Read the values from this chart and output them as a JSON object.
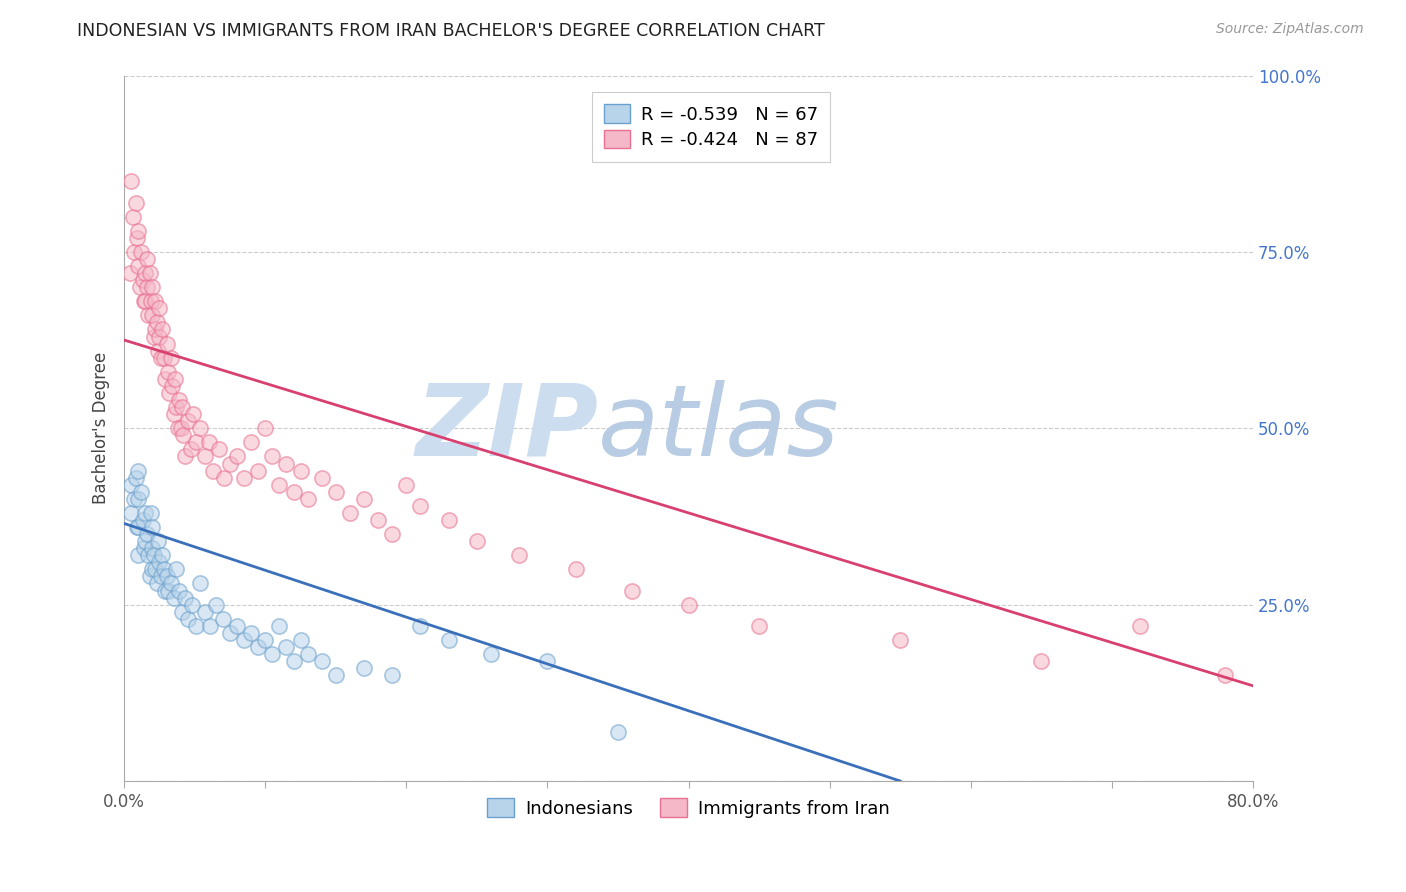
{
  "title": "INDONESIAN VS IMMIGRANTS FROM IRAN BACHELOR'S DEGREE CORRELATION CHART",
  "source": "Source: ZipAtlas.com",
  "ylabel": "Bachelor's Degree",
  "xmin": 0.0,
  "xmax": 0.8,
  "ymin": 0.0,
  "ymax": 1.0,
  "right_ytick_vals": [
    0.0,
    0.25,
    0.5,
    0.75,
    1.0
  ],
  "right_ytick_labels": [
    "",
    "25.0%",
    "50.0%",
    "75.0%",
    "100.0%"
  ],
  "grid_color": "#cccccc",
  "background_color": "#ffffff",
  "legend_label1": "R = -0.539   N = 67",
  "legend_label2": "R = -0.424   N = 87",
  "series1_name": "Indonesians",
  "series1_fill": "#b8d4ea",
  "series1_edge": "#6ca0cc",
  "series1_line_color": "#3a6fba",
  "series2_name": "Immigrants from Iran",
  "series2_fill": "#f5b8c8",
  "series2_edge": "#e87090",
  "series2_line_color": "#d84070",
  "watermark_zip": "ZIP",
  "watermark_atlas": "atlas",
  "watermark_color_zip": "#ccddf0",
  "watermark_color_atlas": "#b8cce4",
  "scatter_size": 120,
  "scatter_alpha": 0.55,
  "scatter_edgewidth": 1.2,
  "blue_scatter_x": [
    0.005,
    0.005,
    0.007,
    0.008,
    0.009,
    0.01,
    0.01,
    0.01,
    0.01,
    0.012,
    0.013,
    0.014,
    0.015,
    0.015,
    0.016,
    0.017,
    0.018,
    0.019,
    0.02,
    0.02,
    0.02,
    0.021,
    0.022,
    0.023,
    0.024,
    0.025,
    0.026,
    0.027,
    0.028,
    0.029,
    0.03,
    0.031,
    0.033,
    0.035,
    0.037,
    0.039,
    0.041,
    0.043,
    0.045,
    0.048,
    0.051,
    0.054,
    0.057,
    0.061,
    0.065,
    0.07,
    0.075,
    0.08,
    0.085,
    0.09,
    0.095,
    0.1,
    0.105,
    0.11,
    0.115,
    0.12,
    0.125,
    0.13,
    0.14,
    0.15,
    0.17,
    0.19,
    0.21,
    0.23,
    0.26,
    0.3,
    0.35
  ],
  "blue_scatter_y": [
    0.42,
    0.38,
    0.4,
    0.43,
    0.36,
    0.44,
    0.4,
    0.36,
    0.32,
    0.41,
    0.37,
    0.33,
    0.38,
    0.34,
    0.35,
    0.32,
    0.29,
    0.38,
    0.36,
    0.33,
    0.3,
    0.32,
    0.3,
    0.28,
    0.34,
    0.31,
    0.29,
    0.32,
    0.3,
    0.27,
    0.29,
    0.27,
    0.28,
    0.26,
    0.3,
    0.27,
    0.24,
    0.26,
    0.23,
    0.25,
    0.22,
    0.28,
    0.24,
    0.22,
    0.25,
    0.23,
    0.21,
    0.22,
    0.2,
    0.21,
    0.19,
    0.2,
    0.18,
    0.22,
    0.19,
    0.17,
    0.2,
    0.18,
    0.17,
    0.15,
    0.16,
    0.15,
    0.22,
    0.2,
    0.18,
    0.17,
    0.07
  ],
  "pink_scatter_x": [
    0.004,
    0.005,
    0.006,
    0.007,
    0.008,
    0.009,
    0.01,
    0.01,
    0.011,
    0.012,
    0.013,
    0.014,
    0.015,
    0.015,
    0.016,
    0.016,
    0.017,
    0.018,
    0.019,
    0.02,
    0.02,
    0.021,
    0.022,
    0.022,
    0.023,
    0.024,
    0.025,
    0.025,
    0.026,
    0.027,
    0.028,
    0.029,
    0.03,
    0.031,
    0.032,
    0.033,
    0.034,
    0.035,
    0.036,
    0.037,
    0.038,
    0.039,
    0.04,
    0.041,
    0.042,
    0.043,
    0.045,
    0.047,
    0.049,
    0.051,
    0.054,
    0.057,
    0.06,
    0.063,
    0.067,
    0.071,
    0.075,
    0.08,
    0.085,
    0.09,
    0.095,
    0.1,
    0.105,
    0.11,
    0.115,
    0.12,
    0.125,
    0.13,
    0.14,
    0.15,
    0.16,
    0.17,
    0.18,
    0.19,
    0.2,
    0.21,
    0.23,
    0.25,
    0.28,
    0.32,
    0.36,
    0.4,
    0.45,
    0.55,
    0.65,
    0.72,
    0.78
  ],
  "pink_scatter_y": [
    0.72,
    0.85,
    0.8,
    0.75,
    0.82,
    0.77,
    0.78,
    0.73,
    0.7,
    0.75,
    0.71,
    0.68,
    0.72,
    0.68,
    0.74,
    0.7,
    0.66,
    0.72,
    0.68,
    0.7,
    0.66,
    0.63,
    0.68,
    0.64,
    0.65,
    0.61,
    0.67,
    0.63,
    0.6,
    0.64,
    0.6,
    0.57,
    0.62,
    0.58,
    0.55,
    0.6,
    0.56,
    0.52,
    0.57,
    0.53,
    0.5,
    0.54,
    0.5,
    0.53,
    0.49,
    0.46,
    0.51,
    0.47,
    0.52,
    0.48,
    0.5,
    0.46,
    0.48,
    0.44,
    0.47,
    0.43,
    0.45,
    0.46,
    0.43,
    0.48,
    0.44,
    0.5,
    0.46,
    0.42,
    0.45,
    0.41,
    0.44,
    0.4,
    0.43,
    0.41,
    0.38,
    0.4,
    0.37,
    0.35,
    0.42,
    0.39,
    0.37,
    0.34,
    0.32,
    0.3,
    0.27,
    0.25,
    0.22,
    0.2,
    0.17,
    0.22,
    0.15
  ],
  "blue_line_x": [
    0.0,
    0.55
  ],
  "blue_line_y": [
    0.365,
    0.0
  ],
  "pink_line_x": [
    0.0,
    0.8
  ],
  "pink_line_y": [
    0.625,
    0.135
  ]
}
